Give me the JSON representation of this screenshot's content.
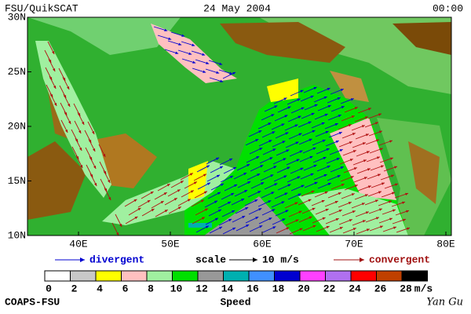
{
  "header": {
    "left": "FSU/QuikSCAT",
    "center": "24 May 2004",
    "right": "00:00"
  },
  "map": {
    "lat_labels": [
      "30N",
      "25N",
      "20N",
      "15N",
      "10N"
    ],
    "lon_labels": [
      "40E",
      "50E",
      "60E",
      "70E",
      "80E"
    ]
  },
  "legend": {
    "divergent": "divergent",
    "scale": "scale",
    "scale_value": "10 m/s",
    "convergent": "convergent"
  },
  "colorbar": {
    "ticks": [
      0,
      2,
      4,
      6,
      8,
      10,
      12,
      14,
      16,
      18,
      20,
      22,
      24,
      26,
      28
    ],
    "unit": "m/s",
    "label": "Speed",
    "colors": [
      "#ffffff",
      "#c8c8c8",
      "#ffff00",
      "#ffc0c0",
      "#a0f0a0",
      "#00e000",
      "#989898",
      "#00b0b0",
      "#4090ff",
      "#0000d0",
      "#ff40ff",
      "#b070f0",
      "#ff0000",
      "#c04000",
      "#000000"
    ]
  },
  "footer": {
    "left": "COAPS-FSU",
    "right": "Yan Gu"
  }
}
